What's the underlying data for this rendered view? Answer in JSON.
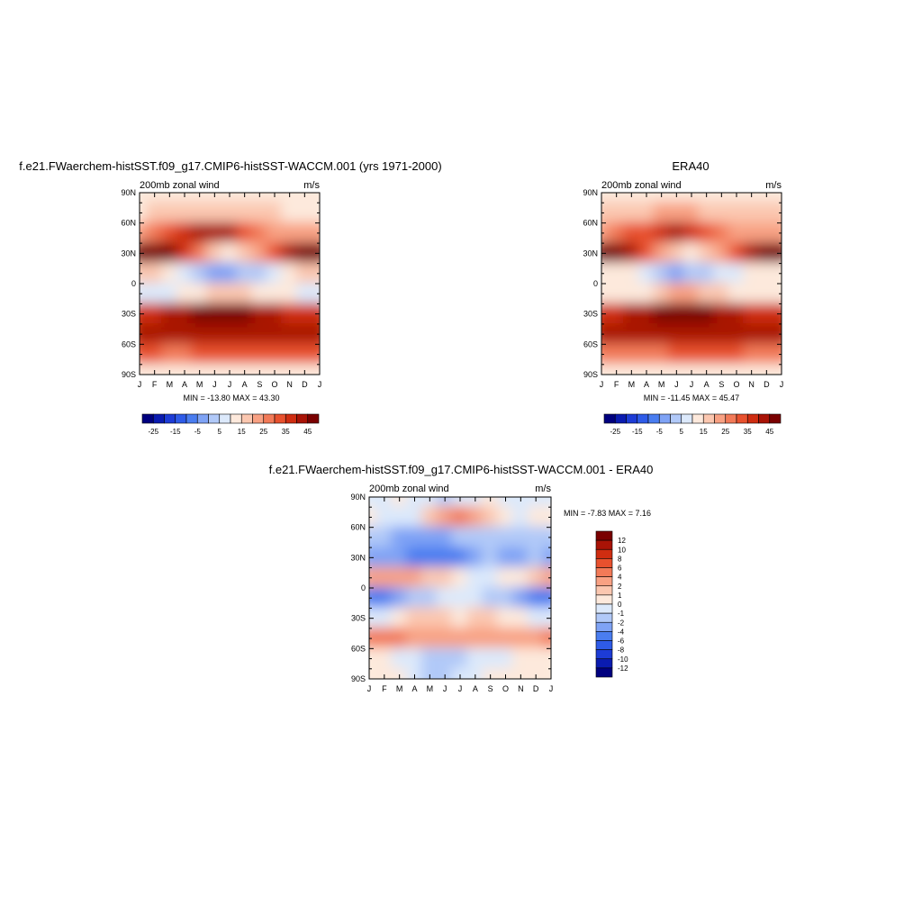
{
  "colors": {
    "abs_scale": [
      "#00007f",
      "#0a1bb0",
      "#1d3cd6",
      "#2e5be8",
      "#4a7df0",
      "#7fa3f5",
      "#b1c9f8",
      "#dce9fb",
      "#fde9dc",
      "#fbc7b0",
      "#f8a183",
      "#f27a58",
      "#e8512e",
      "#cf2d11",
      "#a91306",
      "#7a0000"
    ],
    "diff_scale": [
      "#00007f",
      "#0a1bb0",
      "#1d3cd6",
      "#2e5be8",
      "#4a7df0",
      "#7fa3f5",
      "#b1c9f8",
      "#dce9fb",
      "#fde9dc",
      "#fbc7b0",
      "#f8a183",
      "#f27a58",
      "#e8512e",
      "#cf2d11",
      "#a91306",
      "#7a0000"
    ]
  },
  "chart_data": [
    {
      "type": "heatmap",
      "title": "f.e21.FWaerchem-histSST.f09_g17.CMIP6-histSST-WACCM.001 (yrs 1971-2000)",
      "left_label": "200mb zonal wind",
      "right_label": "m/s",
      "stats": "MIN = -13.80 MAX =  43.30",
      "x_ticks": [
        "J",
        "F",
        "M",
        "A",
        "M",
        "J",
        "J",
        "A",
        "S",
        "O",
        "N",
        "D",
        "J"
      ],
      "y_ticks": [
        "90N",
        "60N",
        "30N",
        "0",
        "30S",
        "60S",
        "90S"
      ],
      "colorbar_labels": [
        "-25",
        "-15",
        "-5",
        "5",
        "15",
        "25",
        "35",
        "45"
      ],
      "values": [
        [
          0,
          0,
          0,
          0,
          0,
          0,
          0,
          0,
          0,
          0,
          0,
          0,
          0
        ],
        [
          4,
          5,
          6,
          7,
          8,
          8,
          8,
          7,
          6,
          5,
          4,
          4,
          4
        ],
        [
          14,
          16,
          20,
          25,
          30,
          32,
          30,
          24,
          18,
          14,
          12,
          14,
          14
        ],
        [
          38,
          40,
          36,
          28,
          18,
          8,
          4,
          6,
          12,
          20,
          30,
          36,
          38
        ],
        [
          8,
          6,
          4,
          -4,
          -9,
          -13,
          -12,
          -10,
          -6,
          -2,
          2,
          6,
          8
        ],
        [
          -2,
          -2,
          -1,
          0,
          4,
          6,
          8,
          6,
          4,
          2,
          0,
          -2,
          -2
        ],
        [
          26,
          28,
          30,
          34,
          38,
          40,
          40,
          38,
          34,
          30,
          28,
          26,
          26
        ],
        [
          34,
          34,
          32,
          30,
          30,
          32,
          34,
          34,
          34,
          34,
          34,
          34,
          34
        ],
        [
          20,
          20,
          18,
          18,
          20,
          22,
          24,
          24,
          22,
          22,
          22,
          20,
          20
        ],
        [
          4,
          4,
          4,
          4,
          4,
          4,
          4,
          4,
          4,
          4,
          4,
          4,
          4
        ]
      ]
    },
    {
      "type": "heatmap",
      "title": "ERA40",
      "left_label": "200mb zonal wind",
      "right_label": "m/s",
      "stats": "MIN = -11.45 MAX =  45.47",
      "x_ticks": [
        "J",
        "F",
        "M",
        "A",
        "M",
        "J",
        "J",
        "A",
        "S",
        "O",
        "N",
        "D",
        "J"
      ],
      "y_ticks": [
        "90N",
        "60N",
        "30N",
        "0",
        "30S",
        "60S",
        "90S"
      ],
      "colorbar_labels": [
        "-25",
        "-15",
        "-5",
        "5",
        "15",
        "25",
        "35",
        "45"
      ],
      "values": [
        [
          2,
          2,
          2,
          2,
          2,
          2,
          2,
          2,
          2,
          2,
          2,
          2,
          2
        ],
        [
          6,
          7,
          8,
          9,
          10,
          10,
          10,
          9,
          8,
          7,
          6,
          6,
          6
        ],
        [
          14,
          16,
          20,
          24,
          28,
          30,
          28,
          24,
          18,
          14,
          12,
          14,
          14
        ],
        [
          38,
          40,
          34,
          24,
          14,
          6,
          4,
          6,
          12,
          20,
          30,
          36,
          38
        ],
        [
          4,
          2,
          0,
          -4,
          -8,
          -11,
          -10,
          -8,
          -4,
          -2,
          0,
          2,
          4
        ],
        [
          4,
          2,
          2,
          4,
          8,
          10,
          10,
          8,
          6,
          4,
          4,
          4,
          4
        ],
        [
          26,
          28,
          30,
          34,
          38,
          40,
          40,
          38,
          34,
          30,
          28,
          26,
          26
        ],
        [
          30,
          30,
          30,
          30,
          32,
          32,
          32,
          32,
          32,
          32,
          30,
          30,
          30
        ],
        [
          18,
          18,
          18,
          18,
          18,
          20,
          20,
          20,
          20,
          20,
          18,
          18,
          18
        ],
        [
          4,
          4,
          4,
          4,
          4,
          4,
          4,
          4,
          4,
          4,
          4,
          4,
          4
        ]
      ]
    },
    {
      "type": "heatmap",
      "title": "f.e21.FWaerchem-histSST.f09_g17.CMIP6-histSST-WACCM.001 - ERA40",
      "left_label": "200mb zonal wind",
      "right_label": "m/s",
      "stats": "MIN =  -7.83 MAX =   7.16",
      "x_ticks": [
        "J",
        "F",
        "M",
        "A",
        "M",
        "J",
        "J",
        "A",
        "S",
        "O",
        "N",
        "D",
        "J"
      ],
      "y_ticks": [
        "90N",
        "60N",
        "30N",
        "0",
        "30S",
        "60S",
        "90S"
      ],
      "colorbar_labels": [
        "12",
        "10",
        "8",
        "6",
        "4",
        "2",
        "1",
        "0",
        "-1",
        "-2",
        "-4",
        "-6",
        "-8",
        "-10",
        "-12"
      ],
      "values": [
        [
          -0.5,
          -1,
          0.5,
          -0.5,
          -1,
          -1.5,
          -1,
          -0.5,
          0.5,
          -0.5,
          -1,
          -0.5,
          -0.5
        ],
        [
          0.5,
          -0.5,
          -1,
          -0.5,
          1,
          3,
          4,
          3,
          1,
          0.5,
          -0.5,
          0.5,
          0.5
        ],
        [
          -1.5,
          -2,
          -2.5,
          -3,
          -3,
          -3,
          -2,
          -1.5,
          -2,
          -2,
          -2,
          -1.5,
          -1.5
        ],
        [
          -3,
          -4,
          -4,
          -5,
          -6,
          -6,
          -5,
          -3,
          -2,
          -3,
          -3,
          -2,
          -3
        ],
        [
          2,
          2.5,
          3,
          2.5,
          1.5,
          1,
          0.5,
          -0.5,
          -0.5,
          0.5,
          0.5,
          1,
          2
        ],
        [
          -6,
          -5,
          -3,
          -2,
          -1.5,
          -1,
          -1,
          -0.5,
          -1.5,
          -2,
          -2.5,
          -5,
          -6
        ],
        [
          -0.5,
          -0.5,
          0.5,
          1,
          1.5,
          1,
          0.5,
          1,
          1.5,
          0.5,
          0.5,
          -0.5,
          -0.5
        ],
        [
          5,
          5,
          4,
          3,
          2,
          2,
          3,
          3,
          3,
          2,
          2,
          3,
          5
        ],
        [
          0.5,
          0.5,
          -0.5,
          -1,
          -2,
          -2,
          -1.5,
          -1,
          -0.5,
          -0.5,
          0.5,
          0.5,
          0.5
        ],
        [
          0.5,
          0,
          0,
          -1,
          -2,
          -2,
          -1,
          -0.5,
          0,
          0,
          0.5,
          0.5,
          0.5
        ]
      ]
    }
  ]
}
